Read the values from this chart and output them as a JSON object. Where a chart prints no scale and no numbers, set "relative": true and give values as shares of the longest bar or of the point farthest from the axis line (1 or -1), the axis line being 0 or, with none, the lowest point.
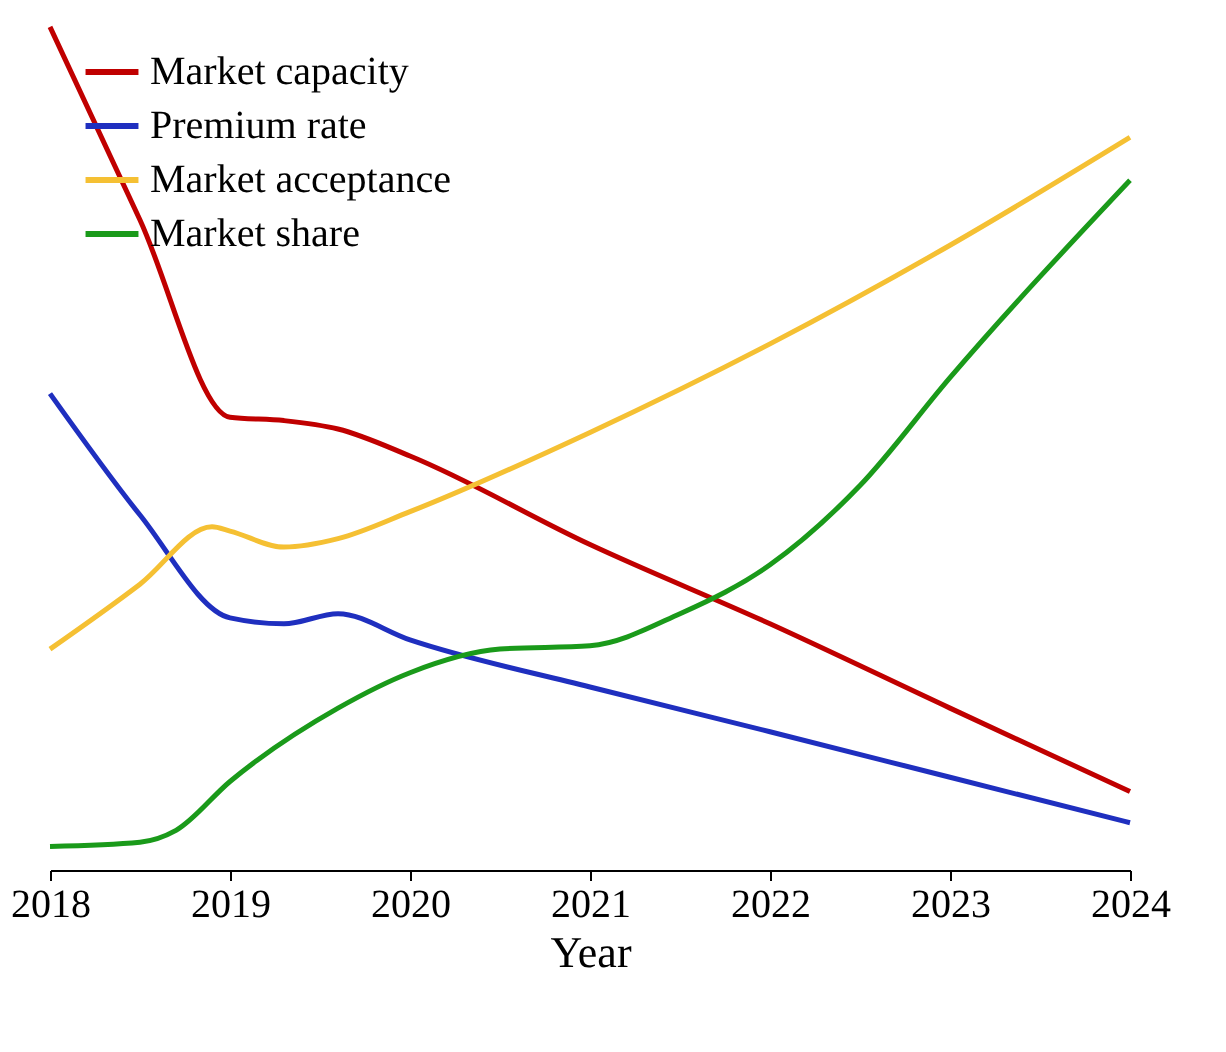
{
  "chart_data": {
    "type": "line",
    "relative": true,
    "xlabel": "Year",
    "xlim": [
      2018,
      2024
    ],
    "xticks": [
      2018,
      2019,
      2020,
      2021,
      2022,
      2023,
      2024
    ],
    "legend": "top left",
    "grid": false,
    "marker": "none",
    "line_style": "solid",
    "series": [
      {
        "name": "Market capacity",
        "color": "#c00000",
        "x": [
          2018,
          2018.5,
          2019,
          2019.3,
          2019.6,
          2020,
          2021,
          2022,
          2023,
          2024
        ],
        "values": [
          1.0,
          0.771,
          0.537,
          0.533,
          0.523,
          0.491,
          0.386,
          0.292,
          0.192,
          0.093
        ]
      },
      {
        "name": "Premium rate",
        "color": "#1f2fbf",
        "x": [
          2018,
          2018.5,
          2019,
          2019.3,
          2019.6,
          2020,
          2021,
          2022,
          2023,
          2024
        ],
        "values": [
          0.565,
          0.421,
          0.299,
          0.292,
          0.304,
          0.273,
          0.217,
          0.164,
          0.11,
          0.056
        ]
      },
      {
        "name": "Market acceptance",
        "color": "#f5c033",
        "x": [
          2018,
          2018.5,
          2018.9,
          2019,
          2019.3,
          2019.6,
          2020,
          2021,
          2022,
          2023,
          2024
        ],
        "values": [
          0.262,
          0.339,
          0.407,
          0.402,
          0.383,
          0.393,
          0.425,
          0.519,
          0.624,
          0.741,
          0.869
        ]
      },
      {
        "name": "Market share",
        "color": "#1a9a1a",
        "x": [
          2018,
          2018.5,
          2018.7,
          2019,
          2019.6,
          2020,
          2020.5,
          2021,
          2021.5,
          2022,
          2022.5,
          2023,
          2024
        ],
        "values": [
          0.028,
          0.033,
          0.047,
          0.105,
          0.192,
          0.234,
          0.262,
          0.266,
          0.304,
          0.362,
          0.456,
          0.584,
          0.818
        ]
      }
    ]
  }
}
